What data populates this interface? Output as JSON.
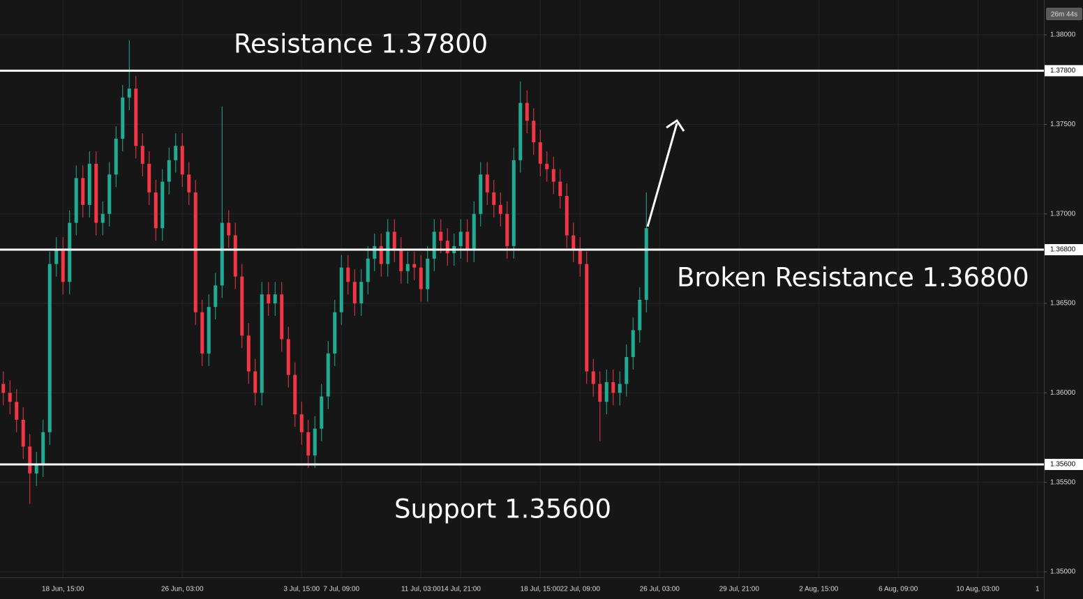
{
  "chart_data": {
    "type": "candlestick",
    "timer": "26m 44s",
    "up_color": "#22ab94",
    "down_color": "#f23645",
    "ylim": [
      1.34969,
      1.38195
    ],
    "yticks": [
      {
        "value": 1.38,
        "label": "1.38000"
      },
      {
        "value": 1.375,
        "label": "1.37500"
      },
      {
        "value": 1.37,
        "label": "1.37000"
      },
      {
        "value": 1.365,
        "label": "1.36500"
      },
      {
        "value": 1.36,
        "label": "1.36000"
      },
      {
        "value": 1.355,
        "label": "1.35500"
      },
      {
        "value": 1.35,
        "label": "1.35000"
      }
    ],
    "grid": true,
    "levels": [
      {
        "value": 1.378,
        "label": "1.37800",
        "annotation": "Resistance 1.37800"
      },
      {
        "value": 1.368,
        "label": "1.36800",
        "annotation": "Broken Resistance 1.36800"
      },
      {
        "value": 1.356,
        "label": "1.35600",
        "annotation": "Support 1.35600"
      }
    ],
    "categories": [
      null,
      null,
      null,
      null,
      null,
      null,
      null,
      null,
      null,
      "18 Jun, 15:00",
      null,
      null,
      null,
      null,
      null,
      null,
      null,
      null,
      null,
      null,
      null,
      null,
      null,
      null,
      null,
      null,
      null,
      "26 Jun, 03:00",
      null,
      null,
      null,
      null,
      null,
      null,
      null,
      null,
      null,
      null,
      null,
      null,
      null,
      null,
      null,
      null,
      null,
      "3 Jul, 15:00",
      null,
      null,
      null,
      null,
      null,
      "7 Jul, 09:00",
      null,
      null,
      null,
      null,
      null,
      null,
      null,
      null,
      null,
      null,
      null,
      "11 Jul, 03:00",
      null,
      null,
      null,
      null,
      null,
      "14 Jul, 21:00",
      null,
      null,
      null,
      null,
      null,
      null,
      null,
      null,
      null,
      null,
      null,
      "18 Jul, 15:00",
      null,
      null,
      null,
      null,
      null,
      "22 Jul, 09:00",
      null,
      null,
      null,
      null,
      null,
      null,
      null,
      null,
      null,
      null,
      null,
      "26 Jul, 03:00",
      null,
      null,
      null,
      null,
      null,
      null,
      null,
      null,
      null,
      null,
      null,
      "29 Jul, 21:00",
      null,
      null,
      null,
      null,
      null,
      null,
      null,
      null,
      null,
      null,
      null,
      "2 Aug, 15:00",
      null,
      null,
      null,
      null,
      null,
      null,
      null,
      null,
      null,
      null,
      null,
      "6 Aug, 09:00",
      null,
      null,
      null,
      null,
      null,
      null,
      null,
      null,
      null,
      null,
      null,
      "10 Aug, 03:00",
      null,
      null,
      null,
      null,
      null,
      null,
      null,
      null,
      "1"
    ],
    "open": [
      1.3605,
      1.36,
      1.3595,
      1.3585,
      1.357,
      1.3555,
      1.356,
      1.3578,
      1.3672,
      1.368,
      1.3662,
      1.3695,
      1.372,
      1.3705,
      1.3728,
      1.3695,
      1.37,
      1.3722,
      1.3742,
      1.3765,
      1.377,
      1.3738,
      1.3728,
      1.3712,
      1.3692,
      1.3718,
      1.373,
      1.3738,
      1.3722,
      1.3712,
      1.3645,
      1.3622,
      1.3648,
      1.366,
      1.3695,
      1.3688,
      1.3665,
      1.3632,
      1.3612,
      1.36,
      1.3655,
      1.365,
      1.3655,
      1.363,
      1.361,
      1.3588,
      1.3578,
      1.3565,
      1.358,
      1.3598,
      1.3622,
      1.3645,
      1.367,
      1.3662,
      1.365,
      1.3662,
      1.3675,
      1.3682,
      1.3672,
      1.369,
      1.368,
      1.3668,
      1.3672,
      1.367,
      1.3658,
      1.3675,
      1.369,
      1.3685,
      1.3678,
      1.3682,
      1.369,
      1.368,
      1.37,
      1.3722,
      1.3712,
      1.3705,
      1.37,
      1.3682,
      1.373,
      1.3762,
      1.3752,
      1.374,
      1.3728,
      1.3725,
      1.3718,
      1.371,
      1.3688,
      1.368,
      1.3672,
      1.3612,
      1.3605,
      1.3595,
      1.3606,
      1.36,
      1.3605,
      1.362,
      1.3635,
      1.3652,
      null,
      null,
      null,
      null,
      null,
      null,
      null,
      null,
      null,
      null,
      null,
      null,
      null,
      null,
      null,
      null,
      null,
      null,
      null,
      null,
      null,
      null,
      null,
      null,
      null,
      null,
      null,
      null,
      null,
      null,
      null,
      null,
      null,
      null,
      null,
      null,
      null,
      null,
      null,
      null,
      null,
      null,
      null,
      null,
      null,
      null,
      null,
      null,
      null,
      null,
      null,
      null,
      null,
      null,
      null,
      null,
      null,
      null,
      null
    ],
    "high": [
      1.3612,
      1.3607,
      1.3602,
      1.3592,
      1.3577,
      1.3567,
      1.3585,
      1.3679,
      1.3687,
      1.3687,
      1.3702,
      1.3727,
      1.3727,
      1.3735,
      1.3735,
      1.3707,
      1.3729,
      1.3749,
      1.3772,
      1.3797,
      1.3777,
      1.3745,
      1.3735,
      1.3719,
      1.3725,
      1.3737,
      1.3745,
      1.3745,
      1.3729,
      1.3719,
      1.3652,
      1.3655,
      1.3667,
      1.376,
      1.3702,
      1.3695,
      1.3672,
      1.3639,
      1.3619,
      1.3662,
      1.3662,
      1.3662,
      1.3662,
      1.3637,
      1.3617,
      1.3595,
      1.3585,
      1.3587,
      1.3605,
      1.3629,
      1.3652,
      1.3677,
      1.3677,
      1.3669,
      1.3669,
      1.3682,
      1.3689,
      1.3689,
      1.3697,
      1.3697,
      1.3687,
      1.3679,
      1.3679,
      1.3677,
      1.3682,
      1.3697,
      1.3697,
      1.3692,
      1.3689,
      1.3697,
      1.3697,
      1.3707,
      1.3729,
      1.3729,
      1.3719,
      1.3712,
      1.3707,
      1.3737,
      1.3774,
      1.3769,
      1.3759,
      1.3747,
      1.3735,
      1.3732,
      1.3725,
      1.3717,
      1.3695,
      1.3687,
      1.3679,
      1.3619,
      1.3612,
      1.3613,
      1.3613,
      1.3612,
      1.3627,
      1.3642,
      1.3659,
      1.3712,
      null,
      null,
      null,
      null,
      null,
      null,
      null,
      null,
      null,
      null,
      null,
      null,
      null,
      null,
      null,
      null,
      null,
      null,
      null,
      null,
      null,
      null,
      null,
      null,
      null,
      null,
      null,
      null,
      null,
      null,
      null,
      null,
      null,
      null,
      null,
      null,
      null,
      null,
      null,
      null,
      null,
      null,
      null,
      null,
      null,
      null,
      null,
      null,
      null,
      null,
      null,
      null,
      null,
      null,
      null,
      null,
      null,
      null,
      null
    ],
    "low": [
      1.3593,
      1.3588,
      1.3578,
      1.3563,
      1.3538,
      1.3548,
      1.3553,
      1.3571,
      1.3665,
      1.3655,
      1.3655,
      1.3688,
      1.3698,
      1.3698,
      1.3688,
      1.3688,
      1.3693,
      1.3715,
      1.3735,
      1.3758,
      1.3731,
      1.3721,
      1.3705,
      1.3685,
      1.3685,
      1.3711,
      1.3723,
      1.3715,
      1.3705,
      1.3638,
      1.3615,
      1.3615,
      1.3641,
      1.3653,
      1.3681,
      1.3658,
      1.3625,
      1.3605,
      1.3593,
      1.3593,
      1.3643,
      1.3643,
      1.3623,
      1.3603,
      1.3581,
      1.3571,
      1.3558,
      1.3558,
      1.3573,
      1.3591,
      1.3615,
      1.3638,
      1.3655,
      1.3643,
      1.3643,
      1.3655,
      1.3668,
      1.3665,
      1.3665,
      1.3673,
      1.3661,
      1.3661,
      1.3663,
      1.3651,
      1.3651,
      1.3668,
      1.3678,
      1.3671,
      1.3671,
      1.3675,
      1.3673,
      1.3673,
      1.3693,
      1.3705,
      1.3698,
      1.3693,
      1.3675,
      1.3675,
      1.3723,
      1.3745,
      1.3733,
      1.3721,
      1.3718,
      1.3711,
      1.3703,
      1.3681,
      1.3673,
      1.3665,
      1.3605,
      1.3598,
      1.3573,
      1.3588,
      1.3593,
      1.3593,
      1.3598,
      1.3613,
      1.3628,
      1.3645,
      null,
      null,
      null,
      null,
      null,
      null,
      null,
      null,
      null,
      null,
      null,
      null,
      null,
      null,
      null,
      null,
      null,
      null,
      null,
      null,
      null,
      null,
      null,
      null,
      null,
      null,
      null,
      null,
      null,
      null,
      null,
      null,
      null,
      null,
      null,
      null,
      null,
      null,
      null,
      null,
      null,
      null,
      null,
      null,
      null,
      null,
      null,
      null,
      null,
      null,
      null,
      null,
      null,
      null,
      null,
      null,
      null,
      null,
      null
    ],
    "close": [
      1.36,
      1.3595,
      1.3585,
      1.357,
      1.3555,
      1.356,
      1.3578,
      1.3672,
      1.368,
      1.3662,
      1.3695,
      1.372,
      1.3705,
      1.3728,
      1.3695,
      1.37,
      1.3722,
      1.3742,
      1.3765,
      1.377,
      1.3738,
      1.3728,
      1.3712,
      1.3692,
      1.3718,
      1.373,
      1.3738,
      1.3722,
      1.3712,
      1.3645,
      1.3622,
      1.3648,
      1.366,
      1.3695,
      1.3688,
      1.3665,
      1.3632,
      1.3612,
      1.36,
      1.3655,
      1.365,
      1.3655,
      1.363,
      1.361,
      1.3588,
      1.3578,
      1.3565,
      1.358,
      1.3598,
      1.3622,
      1.3645,
      1.367,
      1.3662,
      1.365,
      1.3662,
      1.3675,
      1.3682,
      1.3672,
      1.369,
      1.368,
      1.3668,
      1.3672,
      1.367,
      1.3658,
      1.3675,
      1.369,
      1.3685,
      1.3678,
      1.3682,
      1.369,
      1.368,
      1.37,
      1.3722,
      1.3712,
      1.3705,
      1.37,
      1.3682,
      1.373,
      1.3762,
      1.3752,
      1.374,
      1.3728,
      1.3725,
      1.3718,
      1.371,
      1.3688,
      1.368,
      1.3672,
      1.3612,
      1.3605,
      1.3595,
      1.3606,
      1.36,
      1.3605,
      1.362,
      1.3635,
      1.3652,
      1.3692,
      null,
      null,
      null,
      null,
      null,
      null,
      null,
      null,
      null,
      null,
      null,
      null,
      null,
      null,
      null,
      null,
      null,
      null,
      null,
      null,
      null,
      null,
      null,
      null,
      null,
      null,
      null,
      null,
      null,
      null,
      null,
      null,
      null,
      null,
      null,
      null,
      null,
      null,
      null,
      null,
      null,
      null,
      null,
      null,
      null,
      null,
      null,
      null,
      null,
      null,
      null,
      null,
      null,
      null,
      null,
      null,
      null,
      null,
      null
    ]
  }
}
